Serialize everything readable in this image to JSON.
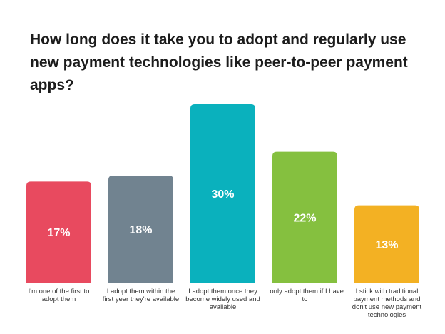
{
  "chart_data": {
    "type": "bar",
    "title": "How long does it take you to adopt and regularly use new payment technologies like peer-to-peer payment apps?",
    "categories": [
      "I'm one of the first to adopt them",
      "I adopt them within the first year they're available",
      "I adopt them once they become widely used and available",
      "I only adopt them if I have to",
      "I stick with traditional payment methods and don't use new payment technologies"
    ],
    "values": [
      17,
      18,
      30,
      22,
      13
    ],
    "value_labels": [
      "17%",
      "18%",
      "30%",
      "22%",
      "13%"
    ],
    "colors": [
      "#E84A5F",
      "#718390",
      "#0AB1BD",
      "#85C03F",
      "#F3B123"
    ],
    "ylim": [
      0,
      30
    ],
    "grid": false,
    "legend": "none"
  }
}
